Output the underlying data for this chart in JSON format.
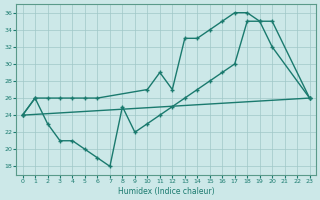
{
  "xlabel": "Humidex (Indice chaleur)",
  "xlim": [
    -0.5,
    23.5
  ],
  "ylim": [
    17,
    37
  ],
  "yticks": [
    18,
    20,
    22,
    24,
    26,
    28,
    30,
    32,
    34,
    36
  ],
  "xticks": [
    0,
    1,
    2,
    3,
    4,
    5,
    6,
    7,
    8,
    9,
    10,
    11,
    12,
    13,
    14,
    15,
    16,
    17,
    18,
    19,
    20,
    21,
    22,
    23
  ],
  "bg_color": "#cce8e8",
  "line_color": "#1a7a6e",
  "curve1_x": [
    0,
    1,
    2,
    3,
    4,
    5,
    6,
    10,
    11,
    12,
    13,
    14,
    15,
    16,
    17,
    18,
    19,
    20,
    23
  ],
  "curve1_y": [
    24,
    26,
    26,
    26,
    26,
    26,
    26,
    27,
    29,
    27,
    33,
    33,
    34,
    35,
    36,
    36,
    35,
    32,
    26
  ],
  "curve2_x": [
    0,
    1,
    2,
    3,
    4,
    5,
    6,
    7,
    8,
    9,
    10,
    11,
    12,
    13,
    14,
    15,
    16,
    17,
    18,
    19,
    20,
    23
  ],
  "curve2_y": [
    24,
    26,
    23,
    21,
    21,
    20,
    19,
    18,
    25,
    22,
    23,
    24,
    25,
    26,
    27,
    28,
    29,
    30,
    35,
    35,
    35,
    26
  ],
  "curve3_x": [
    0,
    23
  ],
  "curve3_y": [
    24,
    26
  ]
}
